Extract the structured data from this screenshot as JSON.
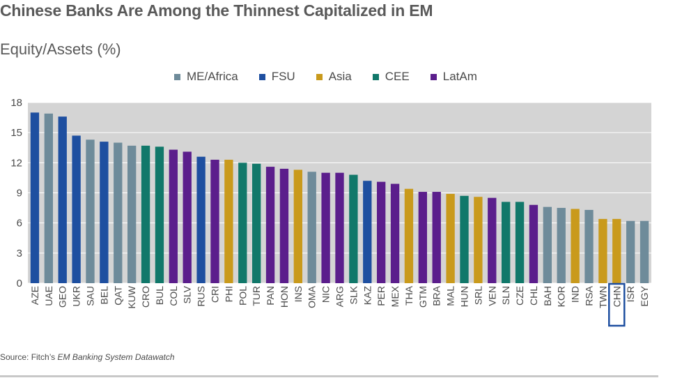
{
  "chart_data": {
    "type": "bar",
    "title": "Chinese Banks Are Among the Thinnest Capitalized in EM",
    "subtitle": "Equity/Assets (%)",
    "legend": [
      {
        "name": "ME/Africa",
        "color": "#6e8b9a"
      },
      {
        "name": "FSU",
        "color": "#1e4fa0"
      },
      {
        "name": "Asia",
        "color": "#c99a1c"
      },
      {
        "name": "CEE",
        "color": "#11786a"
      },
      {
        "name": "LatAm",
        "color": "#5b1e8c"
      }
    ],
    "legend_placement": "top",
    "grid": true,
    "ylim": [
      0,
      18
    ],
    "yticks": [
      "0",
      "3",
      "6",
      "9",
      "12",
      "15",
      "18"
    ],
    "highlighted_category": "CHN",
    "categories": [
      "AZE",
      "UAE",
      "GEO",
      "UKR",
      "SAU",
      "BEL",
      "QAT",
      "KUW",
      "CRO",
      "BUL",
      "COL",
      "SLV",
      "RUS",
      "CRI",
      "PHI",
      "POL",
      "TUR",
      "PAN",
      "HON",
      "INS",
      "OMA",
      "NIC",
      "ARG",
      "SLK",
      "KAZ",
      "PER",
      "MEX",
      "THA",
      "GTM",
      "BRA",
      "MAL",
      "HUN",
      "SRL",
      "VEN",
      "SLN",
      "CZE",
      "CHL",
      "BAH",
      "KOR",
      "IND",
      "RSA",
      "TWN",
      "CHN",
      "ISR",
      "EGY"
    ],
    "values": [
      17.0,
      16.9,
      16.6,
      14.7,
      14.3,
      14.1,
      14.0,
      13.7,
      13.7,
      13.6,
      13.3,
      13.1,
      12.6,
      12.3,
      12.3,
      12.0,
      11.9,
      11.6,
      11.4,
      11.3,
      11.1,
      11.0,
      11.0,
      10.8,
      10.2,
      10.1,
      9.9,
      9.4,
      9.1,
      9.1,
      8.9,
      8.7,
      8.6,
      8.5,
      8.1,
      8.1,
      7.8,
      7.6,
      7.5,
      7.4,
      7.3,
      6.4,
      6.4,
      6.2,
      6.2
    ],
    "groups": [
      "FSU",
      "ME/Africa",
      "FSU",
      "FSU",
      "ME/Africa",
      "FSU",
      "ME/Africa",
      "ME/Africa",
      "CEE",
      "CEE",
      "LatAm",
      "LatAm",
      "FSU",
      "LatAm",
      "Asia",
      "CEE",
      "CEE",
      "LatAm",
      "LatAm",
      "Asia",
      "ME/Africa",
      "LatAm",
      "LatAm",
      "CEE",
      "FSU",
      "LatAm",
      "LatAm",
      "Asia",
      "LatAm",
      "LatAm",
      "Asia",
      "CEE",
      "Asia",
      "LatAm",
      "CEE",
      "CEE",
      "LatAm",
      "ME/Africa",
      "ME/Africa",
      "Asia",
      "ME/Africa",
      "Asia",
      "Asia",
      "ME/Africa",
      "ME/Africa"
    ]
  },
  "source": {
    "prefix": "Source: Fitch’s ",
    "publication": "EM Banking System Datawatch"
  },
  "highlight_color": "#1e4fa0"
}
